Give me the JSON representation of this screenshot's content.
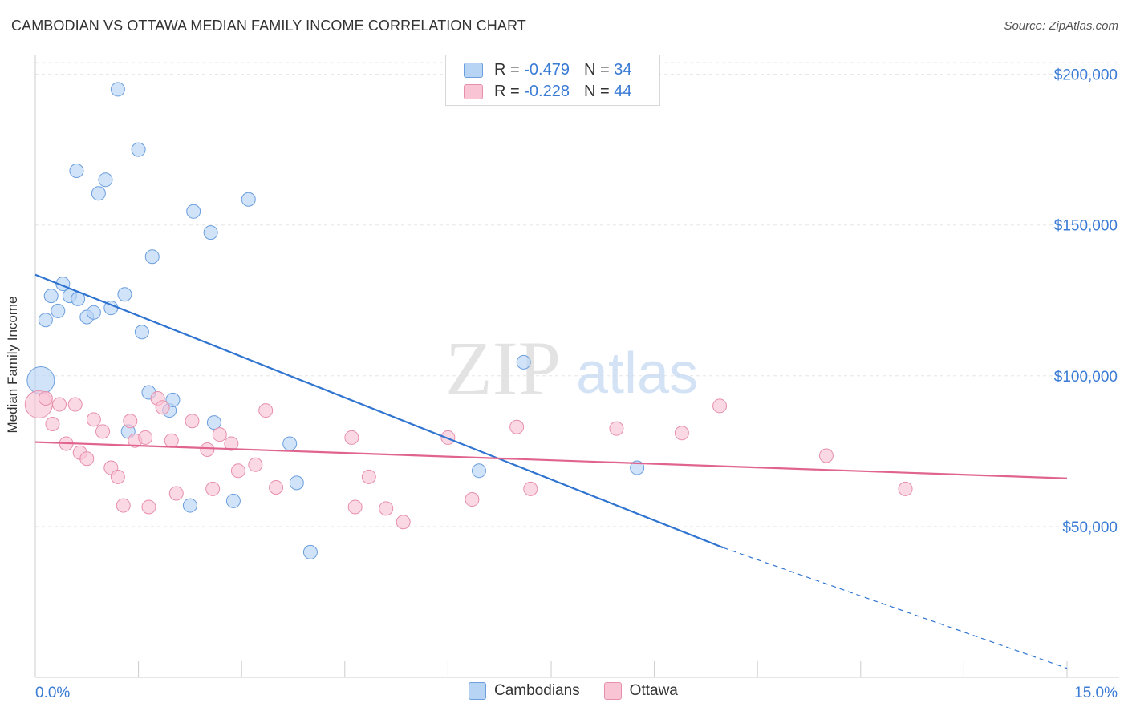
{
  "title": "CAMBODIAN VS OTTAWA MEDIAN FAMILY INCOME CORRELATION CHART",
  "source": "Source: ZipAtlas.com",
  "watermark": {
    "zip": "ZIP",
    "atlas": "atlas"
  },
  "legend": {
    "rows": [
      {
        "r_label": "R =",
        "r_value": "-0.479",
        "n_label": "N =",
        "n_value": "34",
        "color": "#b8d4f5",
        "border": "#6a9ede"
      },
      {
        "r_label": "R =",
        "r_value": "-0.228",
        "n_label": "N =",
        "n_value": "44",
        "color": "#f9c5d5",
        "border": "#e78fab"
      }
    ]
  },
  "bottom_legend": [
    {
      "label": "Cambodians",
      "color": "#b8d4f5",
      "border": "#6a9ede"
    },
    {
      "label": "Ottawa",
      "color": "#f9c5d5",
      "border": "#e78fab"
    }
  ],
  "chart_data": {
    "type": "scatter",
    "title": "CAMBODIAN VS OTTAWA MEDIAN FAMILY INCOME CORRELATION CHART",
    "xlabel": "",
    "ylabel": "Median Family Income",
    "xlim": [
      0,
      15
    ],
    "ylim": [
      0,
      210000
    ],
    "x_tick_labels": [
      "0.0%",
      "15.0%"
    ],
    "y_ticks": [
      50000,
      100000,
      150000,
      200000
    ],
    "y_tick_labels": [
      "$50,000",
      "$100,000",
      "$150,000",
      "$200,000"
    ],
    "grid": true,
    "legend_position": "top-center",
    "series": [
      {
        "name": "Cambodians",
        "color": "#6a9ede",
        "fill": "#b8d4f5",
        "trend": {
          "x": [
            0,
            10.0
          ],
          "y": [
            133500,
            43000
          ],
          "dashed_to": [
            15,
            3000
          ],
          "color": "#2f74d0"
        },
        "points": [
          {
            "x": 0.08,
            "y": 98500,
            "big": true
          },
          {
            "x": 0.15,
            "y": 118500
          },
          {
            "x": 0.23,
            "y": 126500
          },
          {
            "x": 0.33,
            "y": 121500
          },
          {
            "x": 0.4,
            "y": 130500
          },
          {
            "x": 0.5,
            "y": 126500
          },
          {
            "x": 0.62,
            "y": 125500
          },
          {
            "x": 0.75,
            "y": 119500
          },
          {
            "x": 0.85,
            "y": 121000
          },
          {
            "x": 1.1,
            "y": 122500
          },
          {
            "x": 1.3,
            "y": 127000
          },
          {
            "x": 0.6,
            "y": 168000
          },
          {
            "x": 0.92,
            "y": 160500
          },
          {
            "x": 1.02,
            "y": 165000
          },
          {
            "x": 1.2,
            "y": 195000
          },
          {
            "x": 1.5,
            "y": 175000
          },
          {
            "x": 1.7,
            "y": 139500
          },
          {
            "x": 2.3,
            "y": 154500
          },
          {
            "x": 2.55,
            "y": 147500
          },
          {
            "x": 3.1,
            "y": 158500
          },
          {
            "x": 1.55,
            "y": 114500
          },
          {
            "x": 1.65,
            "y": 94500
          },
          {
            "x": 1.95,
            "y": 88500
          },
          {
            "x": 2.0,
            "y": 92000
          },
          {
            "x": 1.35,
            "y": 81500
          },
          {
            "x": 2.6,
            "y": 84500
          },
          {
            "x": 2.25,
            "y": 57000
          },
          {
            "x": 2.88,
            "y": 58500
          },
          {
            "x": 3.7,
            "y": 77500
          },
          {
            "x": 3.8,
            "y": 64500
          },
          {
            "x": 4.0,
            "y": 41500
          },
          {
            "x": 6.45,
            "y": 68500
          },
          {
            "x": 7.1,
            "y": 104500
          },
          {
            "x": 8.75,
            "y": 69500
          }
        ]
      },
      {
        "name": "Ottawa",
        "color": "#e78fab",
        "fill": "#f9c5d5",
        "trend": {
          "x": [
            0,
            15
          ],
          "y": [
            78000,
            66000
          ],
          "color": "#e0648e"
        },
        "points": [
          {
            "x": 0.05,
            "y": 90500,
            "big": true
          },
          {
            "x": 0.15,
            "y": 92500
          },
          {
            "x": 0.25,
            "y": 84000
          },
          {
            "x": 0.35,
            "y": 90500
          },
          {
            "x": 0.45,
            "y": 77500
          },
          {
            "x": 0.58,
            "y": 90500
          },
          {
            "x": 0.65,
            "y": 74500
          },
          {
            "x": 0.75,
            "y": 72500
          },
          {
            "x": 0.85,
            "y": 85500
          },
          {
            "x": 0.98,
            "y": 81500
          },
          {
            "x": 1.1,
            "y": 69500
          },
          {
            "x": 1.2,
            "y": 66500
          },
          {
            "x": 1.28,
            "y": 57000
          },
          {
            "x": 1.38,
            "y": 85000
          },
          {
            "x": 1.45,
            "y": 78500
          },
          {
            "x": 1.6,
            "y": 79500
          },
          {
            "x": 1.65,
            "y": 56500
          },
          {
            "x": 1.78,
            "y": 92500
          },
          {
            "x": 1.85,
            "y": 89500
          },
          {
            "x": 1.98,
            "y": 78500
          },
          {
            "x": 2.05,
            "y": 61000
          },
          {
            "x": 2.28,
            "y": 85000
          },
          {
            "x": 2.5,
            "y": 75500
          },
          {
            "x": 2.58,
            "y": 62500
          },
          {
            "x": 2.68,
            "y": 80500
          },
          {
            "x": 2.85,
            "y": 77500
          },
          {
            "x": 2.95,
            "y": 68500
          },
          {
            "x": 3.2,
            "y": 70500
          },
          {
            "x": 3.35,
            "y": 88500
          },
          {
            "x": 3.5,
            "y": 63000
          },
          {
            "x": 4.6,
            "y": 79500
          },
          {
            "x": 4.65,
            "y": 56500
          },
          {
            "x": 4.85,
            "y": 66500
          },
          {
            "x": 5.1,
            "y": 56000
          },
          {
            "x": 5.35,
            "y": 51500
          },
          {
            "x": 6.0,
            "y": 79500
          },
          {
            "x": 6.35,
            "y": 59000
          },
          {
            "x": 7.0,
            "y": 83000
          },
          {
            "x": 7.2,
            "y": 62500
          },
          {
            "x": 8.45,
            "y": 82500
          },
          {
            "x": 9.4,
            "y": 81000
          },
          {
            "x": 9.95,
            "y": 90000
          },
          {
            "x": 11.5,
            "y": 73500
          },
          {
            "x": 12.65,
            "y": 62500
          }
        ]
      }
    ]
  }
}
